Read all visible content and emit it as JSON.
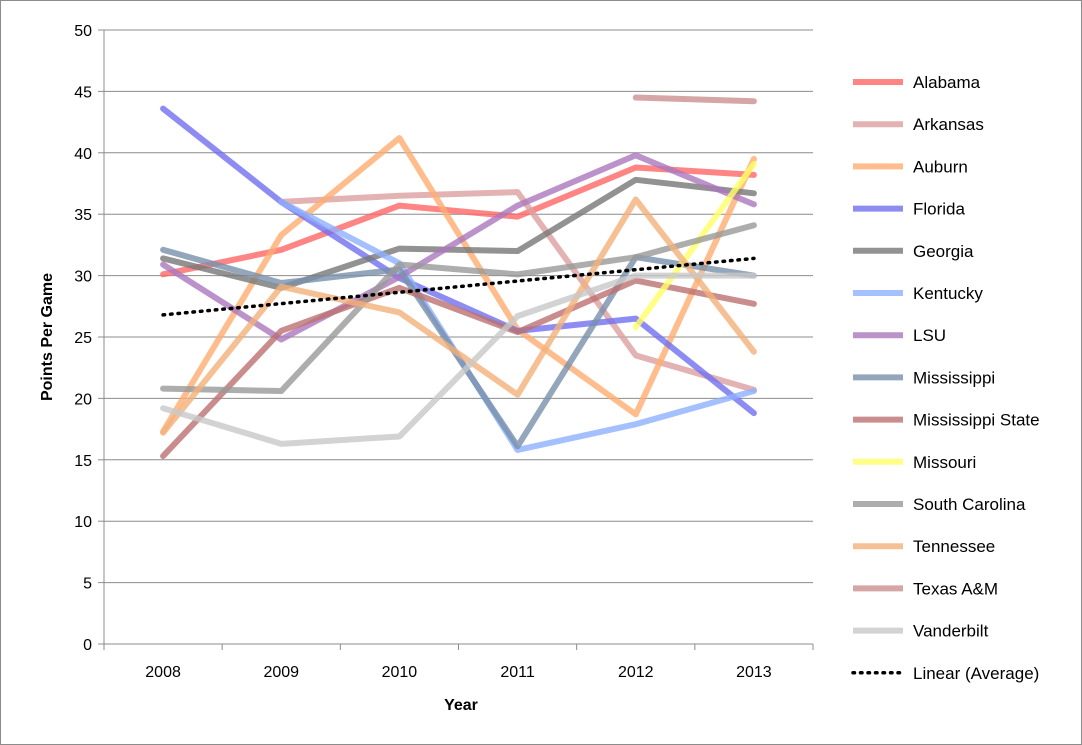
{
  "chart_data": {
    "type": "line",
    "title": "",
    "xlabel": "Year",
    "ylabel": "Points Per Game",
    "x": [
      "2008",
      "2009",
      "2010",
      "2011",
      "2012",
      "2013"
    ],
    "ylim": [
      0,
      50
    ],
    "yticks": [
      "0",
      "5",
      "10",
      "15",
      "20",
      "25",
      "30",
      "35",
      "40",
      "45",
      "50"
    ],
    "grid": "horizontal",
    "legend_position": "right",
    "series": [
      {
        "name": "Alabama",
        "color": "#ff6666",
        "values": [
          30.1,
          32.1,
          35.7,
          34.8,
          38.8,
          38.2
        ]
      },
      {
        "name": "Arkansas",
        "color": "#dca0a0",
        "values": [
          null,
          36.0,
          36.5,
          36.8,
          23.5,
          20.7
        ]
      },
      {
        "name": "Auburn",
        "color": "#ffad70",
        "values": [
          17.3,
          33.3,
          41.2,
          25.6,
          18.7,
          39.5
        ]
      },
      {
        "name": "Florida",
        "color": "#6f6ff0",
        "values": [
          43.6,
          36.0,
          29.8,
          25.5,
          26.5,
          18.8
        ]
      },
      {
        "name": "Georgia",
        "color": "#777777",
        "values": [
          31.4,
          29.0,
          32.2,
          32.0,
          37.8,
          36.7
        ]
      },
      {
        "name": "Kentucky",
        "color": "#8fb0ff",
        "values": [
          null,
          36.0,
          31.0,
          15.8,
          17.9,
          20.6
        ]
      },
      {
        "name": "LSU",
        "color": "#aa77bb",
        "values": [
          30.9,
          24.8,
          29.9,
          35.7,
          39.8,
          35.8
        ]
      },
      {
        "name": "Mississippi",
        "color": "#7890aa",
        "values": [
          32.1,
          29.4,
          30.5,
          16.1,
          31.5,
          30.0
        ]
      },
      {
        "name": "Mississippi State",
        "color": "#bb7070",
        "values": [
          15.3,
          25.5,
          29.0,
          25.4,
          29.6,
          27.7
        ]
      },
      {
        "name": "Missouri",
        "color": "#ffff66",
        "values": [
          null,
          null,
          null,
          null,
          25.8,
          39.1
        ]
      },
      {
        "name": "South Carolina",
        "color": "#999999",
        "values": [
          20.8,
          20.6,
          30.9,
          30.1,
          31.5,
          34.1
        ]
      },
      {
        "name": "Tennessee",
        "color": "#f4b07a",
        "values": [
          17.2,
          29.1,
          27.0,
          20.3,
          36.2,
          23.8
        ]
      },
      {
        "name": "Texas A&M",
        "color": "#cc9090",
        "values": [
          null,
          null,
          null,
          null,
          44.5,
          44.2
        ]
      },
      {
        "name": "Vanderbilt",
        "color": "#c8c8c8",
        "values": [
          19.2,
          16.3,
          16.9,
          26.7,
          30.0,
          30.0
        ]
      },
      {
        "name": "Linear (Average)",
        "color": "#000000",
        "dashed": true,
        "trend": [
          26.8,
          31.4
        ]
      }
    ]
  }
}
